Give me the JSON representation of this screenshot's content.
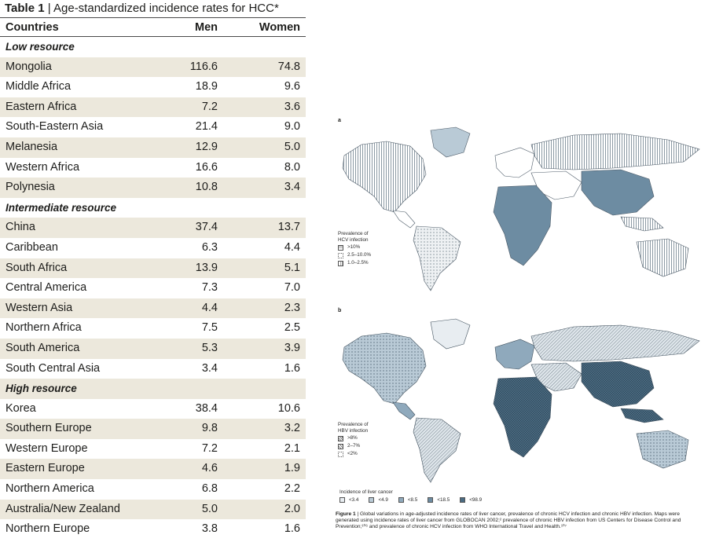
{
  "table": {
    "number": "Table 1",
    "title": "Age-standardized incidence rates for HCC*",
    "headers": {
      "countries": "Countries",
      "men": "Men",
      "women": "Women"
    },
    "sections": [
      {
        "name": "Low resource",
        "rows": [
          {
            "country": "Mongolia",
            "men": "116.6",
            "women": "74.8"
          },
          {
            "country": "Middle Africa",
            "men": "18.9",
            "women": "9.6"
          },
          {
            "country": "Eastern Africa",
            "men": "7.2",
            "women": "3.6"
          },
          {
            "country": "South-Eastern Asia",
            "men": "21.4",
            "women": "9.0"
          },
          {
            "country": "Melanesia",
            "men": "12.9",
            "women": "5.0"
          },
          {
            "country": "Western Africa",
            "men": "16.6",
            "women": "8.0"
          },
          {
            "country": "Polynesia",
            "men": "10.8",
            "women": "3.4"
          }
        ]
      },
      {
        "name": "Intermediate resource",
        "rows": [
          {
            "country": "China",
            "men": "37.4",
            "women": "13.7"
          },
          {
            "country": "Caribbean",
            "men": "6.3",
            "women": "4.4"
          },
          {
            "country": "South Africa",
            "men": "13.9",
            "women": "5.1"
          },
          {
            "country": "Central America",
            "men": "7.3",
            "women": "7.0"
          },
          {
            "country": "Western Asia",
            "men": "4.4",
            "women": "2.3"
          },
          {
            "country": "Northern Africa",
            "men": "7.5",
            "women": "2.5"
          },
          {
            "country": "South America",
            "men": "5.3",
            "women": "3.9"
          },
          {
            "country": "South Central Asia",
            "men": "3.4",
            "women": "1.6"
          }
        ]
      },
      {
        "name": "High resource",
        "rows": [
          {
            "country": "Korea",
            "men": "38.4",
            "women": "10.6"
          },
          {
            "country": "Southern Europe",
            "men": "9.8",
            "women": "3.2"
          },
          {
            "country": "Western Europe",
            "men": "7.2",
            "women": "2.1"
          },
          {
            "country": "Eastern Europe",
            "men": "4.6",
            "women": "1.9"
          },
          {
            "country": "Northern America",
            "men": "6.8",
            "women": "2.2"
          },
          {
            "country": "Australia/New Zealand",
            "men": "5.0",
            "women": "2.0"
          },
          {
            "country": "Northern Europe",
            "men": "3.8",
            "women": "1.6"
          }
        ]
      }
    ]
  },
  "figure": {
    "panel_a": {
      "letter": "a",
      "legend_title_1": "Prevalence of",
      "legend_title_2": "HCV infection",
      "items": [
        ">10%",
        "2.5–10.0%",
        "1.0–2.5%"
      ]
    },
    "panel_b": {
      "letter": "b",
      "legend_title_1": "Prevalence of",
      "legend_title_2": "HBV infection",
      "items": [
        ">8%",
        "2–7%",
        "<2%"
      ]
    },
    "incidence_legend": {
      "title": "Incidence of liver cancer",
      "items": [
        "<3.4",
        "<4.9",
        "<8.5",
        "<18.5",
        "<98.9"
      ]
    },
    "caption": {
      "number": "Figure 1",
      "text": "Global variations in age-adjusted incidence rates of liver cancer, prevalence of chronic HCV infection and chronic HBV infection. Maps were generated using incidence rates of liver cancer from GLOBOCAN 2002;² prevalence of chronic HBV infection from US Centers for Disease Control and Prevention;¹⁰⁶ and prevalence of chronic HCV infection from WHO International Travel and Health.¹⁰⁷"
    }
  },
  "colors": {
    "shade": "#ece8dc",
    "ocean": "#ffffff",
    "incidence": [
      "#e8edf1",
      "#b9cad6",
      "#8fa9bc",
      "#6d8ca2",
      "#4a6b82"
    ]
  }
}
